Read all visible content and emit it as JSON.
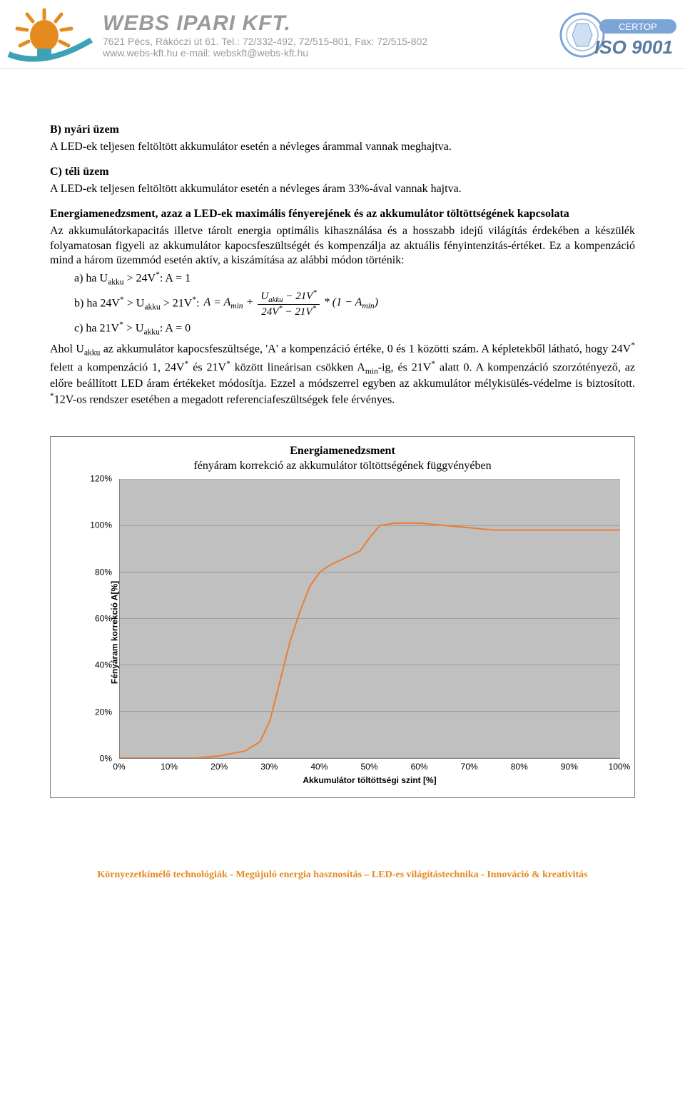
{
  "header": {
    "company_name": "WEBS IPARI KFT.",
    "address": "7621 Pécs, Rákóczi út 61. Tel.: 72/332-492, 72/515-801, Fax: 72/515-802",
    "web": "www.webs-kft.hu  e-mail: webskft@webs-kft.hu",
    "iso_text": "ISO 9001",
    "certop_text": "CERTOP",
    "logo_colors": {
      "rays": "#e58a1f",
      "bulb": "#3da2b6",
      "brand_gray": "#9a9a9a"
    }
  },
  "body": {
    "b_head": "B)  nyári üzem",
    "b_text": "A LED-ek teljesen feltöltött akkumulátor esetén a névleges árammal vannak meghajtva.",
    "c_head": "C)  téli üzem",
    "c_text": "A LED-ek teljesen feltöltött akkumulátor esetén a névleges áram 33%-ával vannak hajtva.",
    "em_head": "Energiamenedzsment, azaz a LED-ek maximális fényerejének és az akkumulátor töltöttségének kapcsolata",
    "em_text": "Az akkumulátorkapacitás illetve tárolt energia optimális kihasználása és a hosszabb idejű világítás érdekében a készülék folyamatosan figyeli az akkumulátor kapocsfeszültségét és kompenzálja az aktuális fényintenzitás-értéket. Ez a kompenzáció mind a három üzemmód esetén aktív, a kiszámítása az alábbi módon történik:",
    "li_a": "a)  ha U",
    "li_a2": " > 24V",
    "li_a3": ": A = 1",
    "li_b": "b)  ha 24V",
    "li_b2": " > U",
    "li_b3": " > 21V",
    "li_b4": ": ",
    "li_c": "c)  ha 21V",
    "li_c2": " > U",
    "li_c3": ": A = 0",
    "akku": "akku",
    "star": "*",
    "formula_left": "A = A",
    "formula_min": "min",
    "formula_plus": " + ",
    "formula_num_l": "U",
    "formula_num_r": " − 21V",
    "formula_den": "24V",
    "formula_den2": " − 21V",
    "formula_right": " * (1 − A",
    "formula_close": ")",
    "ahol": "Ahol U",
    "posttext": " az akkumulátor kapocsfeszültsége, 'A' a kompenzáció értéke, 0 és 1 közötti szám. A képletekből látható, hogy 24V",
    "posttext2": " felett a kompenzáció 1, 24V",
    "posttext3": " és 21V",
    "posttext4": " között lineárisan csökken A",
    "posttext5": "-ig, és 21V",
    "posttext6": " alatt 0.  A kompenzáció szorzótényező, az előre beállított LED áram értékeket módosítja. Ezzel a módszerrel egyben az akkumulátor mélykisülés-védelme is biztosított. ",
    "posttext7": "12V-os rendszer esetében a megadott referenciafeszültségek fele érvényes.",
    "min": "min"
  },
  "chart": {
    "type": "line",
    "title_bold": "Energiamenedzsment",
    "title_sub": "fényáram korrekció az akkumulátor töltöttségének függvényében",
    "xlabel": "Akkumulátor töltöttségi szint [%]",
    "ylabel": "Fényáram korrekció A[%]",
    "xlim": [
      0,
      100
    ],
    "ylim": [
      0,
      120
    ],
    "xtick_step": 10,
    "ytick_step": 20,
    "xticks": [
      "0%",
      "10%",
      "20%",
      "30%",
      "40%",
      "50%",
      "60%",
      "70%",
      "80%",
      "90%",
      "100%"
    ],
    "yticks": [
      "0%",
      "20%",
      "40%",
      "60%",
      "80%",
      "100%",
      "120%"
    ],
    "series_color": "#ed7d31",
    "line_width": 2,
    "plot_bg": "#c0c0c0",
    "grid_color": "#808080",
    "data_x": [
      0,
      5,
      10,
      15,
      20,
      25,
      28,
      30,
      32,
      34,
      36,
      38,
      40,
      42,
      45,
      48,
      50,
      52,
      55,
      60,
      65,
      70,
      75,
      80,
      85,
      90,
      95,
      100
    ],
    "data_y": [
      0,
      0,
      0,
      0,
      1,
      3,
      7,
      16,
      33,
      50,
      63,
      74,
      80,
      83,
      86,
      89,
      95,
      100,
      101,
      101,
      100,
      99,
      98,
      98,
      98,
      98,
      98,
      98
    ]
  },
  "footer": {
    "text": "Környezetkímélő technológiák - Megújuló energia hasznosítás – LED-es világítástechnika - Innováció & kreativitás",
    "color": "#e58a1f"
  }
}
